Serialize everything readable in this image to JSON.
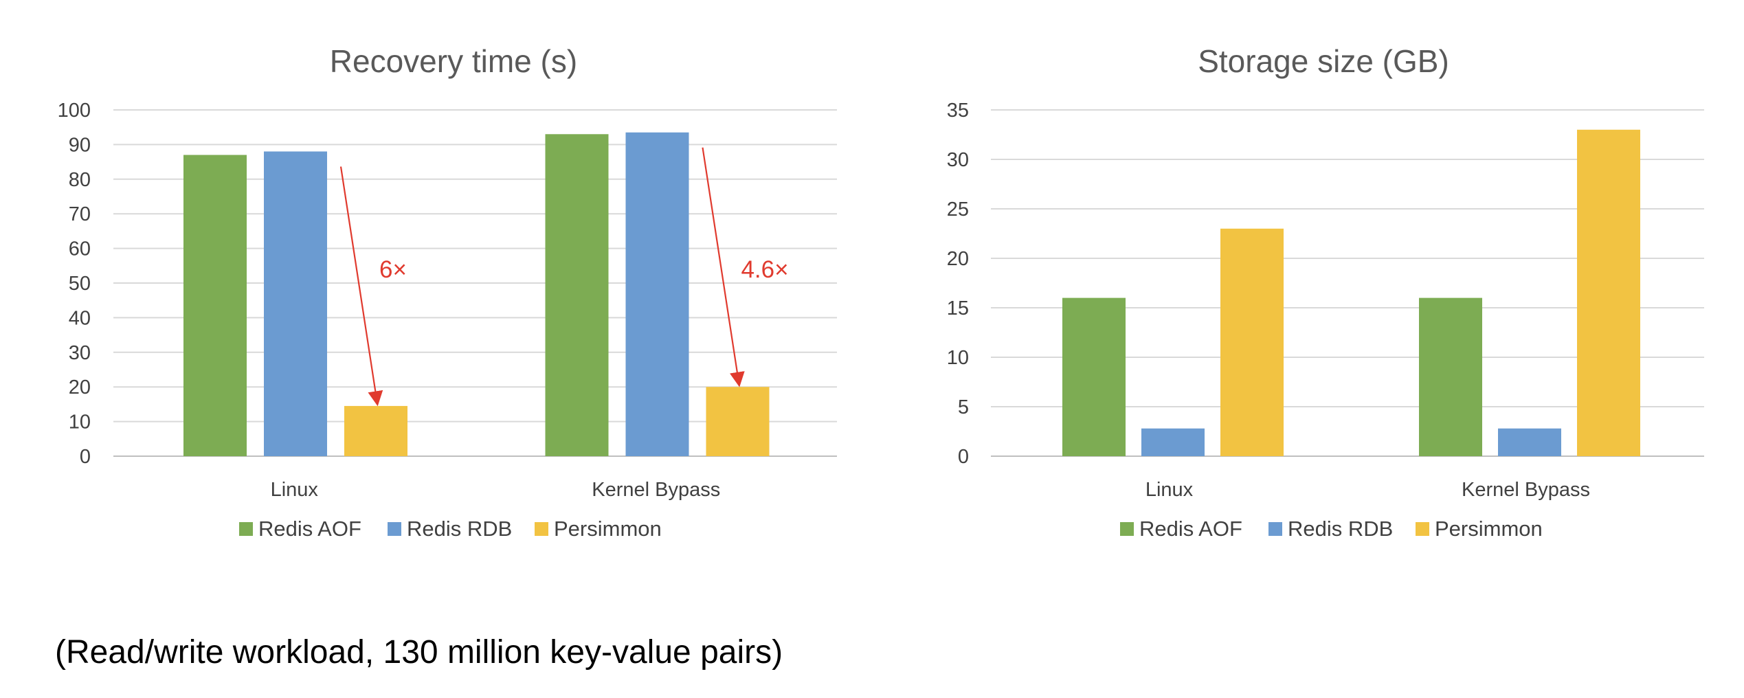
{
  "colors": {
    "redis_aof": "#7DAC53",
    "redis_rdb": "#6B9BD1",
    "persimmon": "#F2C342",
    "annotation": "#E03A2E"
  },
  "footnote": "(Read/write workload, 130 million key-value pairs)",
  "chart_data": [
    {
      "type": "bar",
      "title": "Recovery time (s)",
      "xlabel": "",
      "ylabel": "",
      "categories": [
        "Linux",
        "Kernel Bypass"
      ],
      "series": [
        {
          "name": "Redis AOF",
          "values": [
            87,
            93
          ]
        },
        {
          "name": "Redis RDB",
          "values": [
            88,
            93.5
          ]
        },
        {
          "name": "Persimmon",
          "values": [
            14.5,
            20
          ]
        }
      ],
      "ylim": [
        0,
        100
      ],
      "yticks": [
        0,
        10,
        20,
        30,
        40,
        50,
        60,
        70,
        80,
        90,
        100
      ],
      "grid": true,
      "legend": "bottom",
      "annotations": [
        {
          "text": "6×",
          "category": "Linux"
        },
        {
          "text": "4.6×",
          "category": "Kernel Bypass"
        }
      ]
    },
    {
      "type": "bar",
      "title": "Storage size (GB)",
      "xlabel": "",
      "ylabel": "",
      "categories": [
        "Linux",
        "Kernel Bypass"
      ],
      "series": [
        {
          "name": "Redis AOF",
          "values": [
            16,
            16
          ]
        },
        {
          "name": "Redis RDB",
          "values": [
            2.8,
            2.8
          ]
        },
        {
          "name": "Persimmon",
          "values": [
            23,
            33
          ]
        }
      ],
      "ylim": [
        0,
        35
      ],
      "yticks": [
        0,
        5,
        10,
        15,
        20,
        25,
        30,
        35
      ],
      "grid": true,
      "legend": "bottom",
      "annotations": []
    }
  ]
}
